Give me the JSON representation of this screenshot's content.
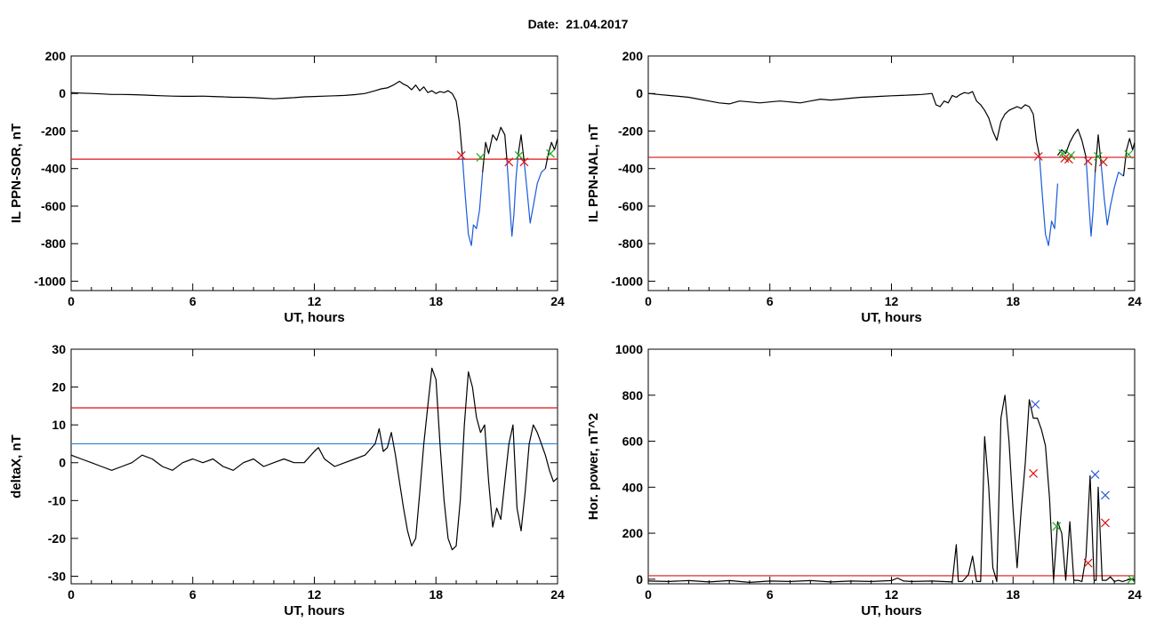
{
  "page": {
    "title": "Date:  21.04.2017"
  },
  "chart_data": [
    {
      "id": "ppn-sor",
      "type": "line",
      "xlabel": "UT, hours",
      "ylabel": "IL PPN-SOR, nT",
      "xlim": [
        0,
        24
      ],
      "ylim": [
        -1050,
        200
      ],
      "xticks": [
        0,
        6,
        12,
        18,
        24
      ],
      "yticks": [
        200,
        0,
        -200,
        -400,
        -600,
        -800,
        -1000
      ],
      "series": [
        {
          "color": "#000000",
          "x": [
            0,
            0.5,
            1,
            1.5,
            2,
            2.5,
            3,
            3.5,
            4,
            4.5,
            5,
            5.5,
            6,
            6.5,
            7,
            7.5,
            8,
            8.5,
            9,
            9.5,
            10,
            10.5,
            11,
            11.5,
            12,
            12.5,
            13,
            13.5,
            14,
            14.5,
            15,
            15.3,
            15.6,
            15.9,
            16.2,
            16.4,
            16.6,
            16.8,
            17,
            17.2,
            17.4,
            17.6,
            17.8,
            18,
            18.2,
            18.4,
            18.6,
            18.8,
            19,
            19.15,
            19.3
          ],
          "y": [
            5,
            2,
            0,
            -2,
            -5,
            -5,
            -6,
            -8,
            -10,
            -12,
            -14,
            -15,
            -15,
            -14,
            -16,
            -18,
            -20,
            -20,
            -22,
            -25,
            -28,
            -25,
            -22,
            -18,
            -16,
            -14,
            -12,
            -10,
            -6,
            0,
            15,
            25,
            30,
            45,
            65,
            50,
            40,
            20,
            45,
            15,
            35,
            5,
            15,
            0,
            10,
            5,
            15,
            0,
            -40,
            -150,
            -330
          ]
        },
        {
          "color": "#1a5ad8",
          "x": [
            19.3,
            19.45,
            19.6,
            19.75,
            19.85,
            20,
            20.15,
            20.3
          ],
          "y": [
            -330,
            -550,
            -750,
            -810,
            -700,
            -720,
            -620,
            -420
          ]
        },
        {
          "color": "#000000",
          "x": [
            20.3,
            20.45,
            20.6,
            20.8,
            21,
            21.2,
            21.4,
            21.5
          ],
          "y": [
            -420,
            -260,
            -320,
            -220,
            -250,
            -180,
            -220,
            -350
          ]
        },
        {
          "color": "#1a5ad8",
          "x": [
            21.5,
            21.65,
            21.75,
            21.85,
            21.95,
            22.05
          ],
          "y": [
            -350,
            -600,
            -760,
            -640,
            -450,
            -330
          ]
        },
        {
          "color": "#000000",
          "x": [
            22.05,
            22.2,
            22.35
          ],
          "y": [
            -330,
            -220,
            -360
          ]
        },
        {
          "color": "#1a5ad8",
          "x": [
            22.35,
            22.5,
            22.65,
            22.8,
            23,
            23.2,
            23.4
          ],
          "y": [
            -360,
            -520,
            -690,
            -600,
            -480,
            -420,
            -400
          ]
        },
        {
          "color": "#000000",
          "x": [
            23.4,
            23.55,
            23.7,
            23.85,
            24
          ],
          "y": [
            -400,
            -320,
            -260,
            -300,
            -240
          ]
        }
      ],
      "hlines": [
        {
          "y": -350,
          "color": "#e01010"
        }
      ],
      "markers": [
        {
          "x": 19.25,
          "y": -330,
          "color": "#e01010"
        },
        {
          "x": 20.2,
          "y": -340,
          "color": "#22aa22"
        },
        {
          "x": 21.6,
          "y": -365,
          "color": "#e01010"
        },
        {
          "x": 22.35,
          "y": -365,
          "color": "#e01010"
        },
        {
          "x": 22.1,
          "y": -330,
          "color": "#22aa22"
        },
        {
          "x": 23.65,
          "y": -320,
          "color": "#22aa22"
        }
      ]
    },
    {
      "id": "ppn-nal",
      "type": "line",
      "xlabel": "UT, hours",
      "ylabel": "IL PPN-NAL, nT",
      "xlim": [
        0,
        24
      ],
      "ylim": [
        -1050,
        200
      ],
      "xticks": [
        0,
        6,
        12,
        18,
        24
      ],
      "yticks": [
        200,
        0,
        -200,
        -400,
        -600,
        -800,
        -1000
      ],
      "series": [
        {
          "color": "#000000",
          "x": [
            0,
            0.5,
            1,
            1.5,
            2,
            2.5,
            3,
            3.5,
            4,
            4.5,
            5,
            5.5,
            6,
            6.5,
            7,
            7.5,
            8,
            8.5,
            9,
            9.5,
            10,
            10.5,
            11,
            11.5,
            12,
            12.5,
            13,
            13.5,
            14,
            14.2,
            14.4,
            14.6,
            14.8,
            15,
            15.2,
            15.4,
            15.6,
            15.8,
            16,
            16.2,
            16.4,
            16.6,
            16.8,
            17,
            17.2,
            17.4,
            17.6,
            17.8,
            18,
            18.2,
            18.4,
            18.6,
            18.8,
            19,
            19.15,
            19.3
          ],
          "y": [
            0,
            -5,
            -10,
            -15,
            -20,
            -30,
            -40,
            -50,
            -55,
            -40,
            -45,
            -50,
            -45,
            -40,
            -45,
            -50,
            -40,
            -30,
            -35,
            -30,
            -25,
            -20,
            -18,
            -15,
            -12,
            -10,
            -8,
            -5,
            0,
            -60,
            -70,
            -40,
            -50,
            -10,
            -20,
            -5,
            5,
            0,
            10,
            -40,
            -60,
            -90,
            -130,
            -200,
            -250,
            -150,
            -110,
            -90,
            -80,
            -70,
            -80,
            -60,
            -70,
            -110,
            -250,
            -330
          ]
        },
        {
          "color": "#1a5ad8",
          "x": [
            19.3,
            19.45,
            19.6,
            19.75,
            19.9,
            20.05,
            20.2
          ],
          "y": [
            -330,
            -550,
            -750,
            -810,
            -680,
            -720,
            -480
          ]
        },
        {
          "color": "#000000",
          "x": [
            20.2,
            20.4,
            20.6,
            20.8,
            21,
            21.2,
            21.4,
            21.6
          ],
          "y": [
            -330,
            -300,
            -320,
            -260,
            -220,
            -190,
            -250,
            -340
          ]
        },
        {
          "color": "#1a5ad8",
          "x": [
            21.6,
            21.75,
            21.85,
            21.95,
            22.05
          ],
          "y": [
            -340,
            -600,
            -760,
            -620,
            -420
          ]
        },
        {
          "color": "#000000",
          "x": [
            22.05,
            22.2,
            22.35
          ],
          "y": [
            -420,
            -220,
            -380
          ]
        },
        {
          "color": "#1a5ad8",
          "x": [
            22.35,
            22.5,
            22.65,
            22.8,
            23,
            23.2,
            23.45
          ],
          "y": [
            -380,
            -560,
            -700,
            -600,
            -500,
            -420,
            -440
          ]
        },
        {
          "color": "#000000",
          "x": [
            23.45,
            23.6,
            23.75,
            23.9,
            24
          ],
          "y": [
            -440,
            -300,
            -240,
            -300,
            -260
          ]
        }
      ],
      "hlines": [
        {
          "y": -340,
          "color": "#e01010"
        }
      ],
      "markers": [
        {
          "x": 19.25,
          "y": -335,
          "color": "#e01010"
        },
        {
          "x": 20.55,
          "y": -345,
          "color": "#e01010"
        },
        {
          "x": 20.75,
          "y": -350,
          "color": "#e01010"
        },
        {
          "x": 20.45,
          "y": -320,
          "color": "#22aa22"
        },
        {
          "x": 20.85,
          "y": -330,
          "color": "#22aa22"
        },
        {
          "x": 21.7,
          "y": -360,
          "color": "#e01010"
        },
        {
          "x": 22.45,
          "y": -365,
          "color": "#e01010"
        },
        {
          "x": 22.2,
          "y": -335,
          "color": "#22aa22"
        },
        {
          "x": 23.7,
          "y": -325,
          "color": "#22aa22"
        }
      ]
    },
    {
      "id": "deltax",
      "type": "line",
      "xlabel": "UT, hours",
      "ylabel": "deltaX, nT",
      "xlim": [
        0,
        24
      ],
      "ylim": [
        -32,
        30
      ],
      "xticks": [
        0,
        6,
        12,
        18,
        24
      ],
      "yticks": [
        30,
        20,
        10,
        0,
        -10,
        -20,
        -30
      ],
      "series": [
        {
          "color": "#000000",
          "x": [
            0,
            0.5,
            1,
            1.5,
            2,
            2.5,
            3,
            3.5,
            4,
            4.5,
            5,
            5.5,
            6,
            6.5,
            7,
            7.5,
            8,
            8.5,
            9,
            9.5,
            10,
            10.5,
            11,
            11.5,
            12,
            12.2,
            12.5,
            13,
            13.5,
            14,
            14.5,
            15,
            15.2,
            15.4,
            15.6,
            15.8,
            16,
            16.2,
            16.4,
            16.6,
            16.8,
            17,
            17.2,
            17.4,
            17.6,
            17.8,
            18,
            18.2,
            18.4,
            18.6,
            18.8,
            19,
            19.2,
            19.4,
            19.6,
            19.8,
            20,
            20.2,
            20.4,
            20.6,
            20.8,
            21,
            21.2,
            21.4,
            21.6,
            21.8,
            22,
            22.2,
            22.4,
            22.6,
            22.8,
            23,
            23.2,
            23.4,
            23.6,
            23.8,
            24
          ],
          "y": [
            2,
            1,
            0,
            -1,
            -2,
            -1,
            0,
            2,
            1,
            -1,
            -2,
            0,
            1,
            0,
            1,
            -1,
            -2,
            0,
            1,
            -1,
            0,
            1,
            0,
            0,
            3,
            4,
            1,
            -1,
            0,
            1,
            2,
            5,
            9,
            3,
            4,
            8,
            2,
            -5,
            -12,
            -18,
            -22,
            -20,
            -8,
            5,
            15,
            25,
            22,
            5,
            -10,
            -20,
            -23,
            -22,
            -10,
            10,
            24,
            20,
            12,
            8,
            10,
            -5,
            -17,
            -12,
            -15,
            -5,
            5,
            10,
            -12,
            -18,
            -8,
            5,
            10,
            8,
            5,
            2,
            -2,
            -5,
            -4
          ]
        }
      ],
      "hlines": [
        {
          "y": 14.5,
          "color": "#e01010"
        },
        {
          "y": 5,
          "color": "#2a7fd4"
        }
      ],
      "markers": []
    },
    {
      "id": "hor-power",
      "type": "line",
      "xlabel": "UT, hours",
      "ylabel": "Hor. power, nT^2",
      "xlim": [
        0,
        24
      ],
      "ylim": [
        -20,
        1000
      ],
      "xticks": [
        0,
        6,
        12,
        18,
        24
      ],
      "yticks": [
        1000,
        800,
        600,
        400,
        200,
        0
      ],
      "series": [
        {
          "color": "#000000",
          "x": [
            0,
            1,
            2,
            3,
            4,
            5,
            6,
            7,
            8,
            9,
            10,
            11,
            12,
            12.3,
            12.6,
            13,
            14,
            15,
            15.2,
            15.3,
            15.5,
            15.8,
            16,
            16.2,
            16.4,
            16.6,
            16.8,
            17,
            17.2,
            17.4,
            17.6,
            17.8,
            18,
            18.2,
            18.4,
            18.6,
            18.8,
            19,
            19.2,
            19.4,
            19.6,
            19.8,
            20,
            20.2,
            20.4,
            20.6,
            20.8,
            21,
            21.2,
            21.4,
            21.6,
            21.8,
            22,
            22.1,
            22.2,
            22.4,
            22.5,
            22.6,
            22.8,
            23,
            23.2,
            23.4,
            23.6,
            23.8,
            24
          ],
          "y": [
            -8,
            -10,
            -6,
            -12,
            -6,
            -14,
            -8,
            -10,
            -6,
            -12,
            -8,
            -10,
            -6,
            5,
            -8,
            -10,
            -8,
            -12,
            150,
            -10,
            -10,
            20,
            100,
            -10,
            -10,
            620,
            400,
            50,
            -10,
            700,
            800,
            600,
            300,
            50,
            300,
            500,
            780,
            700,
            700,
            650,
            580,
            350,
            -5,
            250,
            200,
            -5,
            250,
            -5,
            -5,
            -10,
            100,
            450,
            -5,
            -5,
            400,
            -5,
            -5,
            -5,
            10,
            -10,
            -5,
            -10,
            -5,
            0,
            -5
          ]
        }
      ],
      "hlines": [
        {
          "y": 15,
          "color": "#e01010"
        }
      ],
      "markers": [
        {
          "x": 19.1,
          "y": 760,
          "color": "#2a5ad8"
        },
        {
          "x": 19.0,
          "y": 460,
          "color": "#e01010"
        },
        {
          "x": 20.15,
          "y": 230,
          "color": "#22aa22"
        },
        {
          "x": 21.7,
          "y": 70,
          "color": "#e01010"
        },
        {
          "x": 22.05,
          "y": 455,
          "color": "#2a5ad8"
        },
        {
          "x": 22.55,
          "y": 365,
          "color": "#2a5ad8"
        },
        {
          "x": 22.55,
          "y": 245,
          "color": "#e01010"
        },
        {
          "x": 23.85,
          "y": 0,
          "color": "#22aa22"
        }
      ]
    }
  ]
}
